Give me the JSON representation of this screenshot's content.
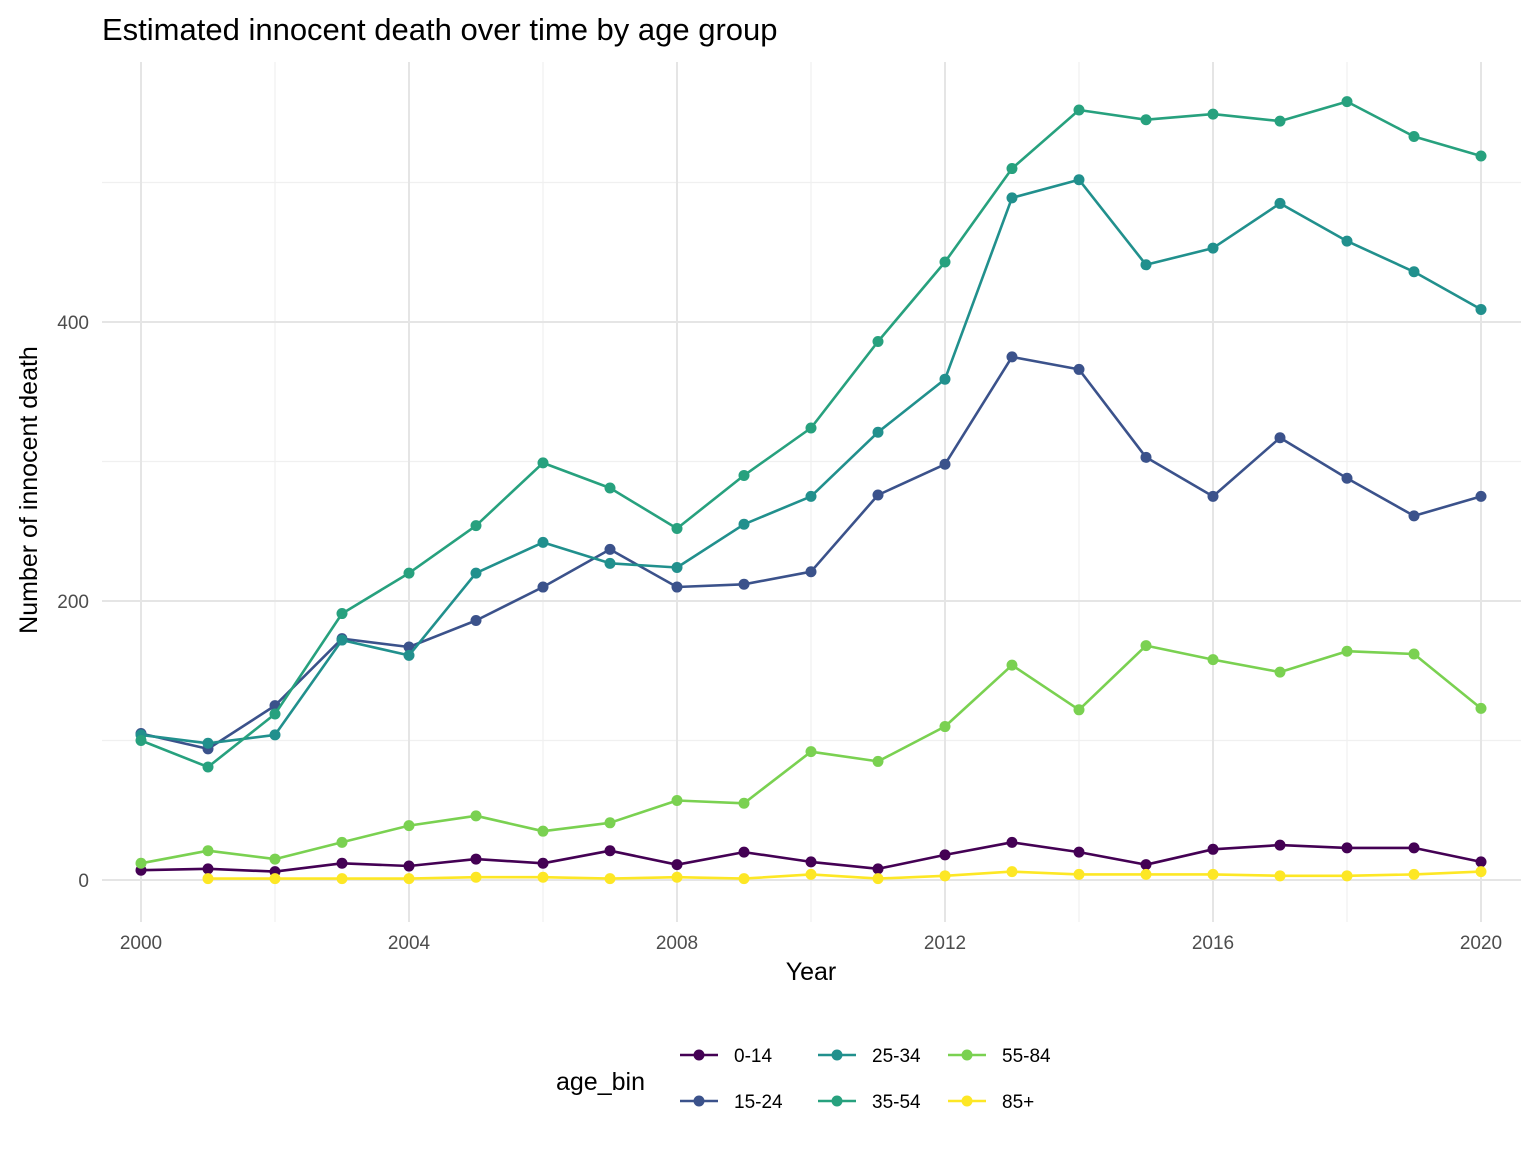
{
  "chart_data": {
    "type": "line",
    "title": "Estimated innocent death over time by age group",
    "xlabel": "Year",
    "ylabel": "Number of innocent death",
    "xlim": [
      2000,
      2020
    ],
    "ylim": [
      0,
      560
    ],
    "x_ticks": [
      2000,
      2004,
      2008,
      2012,
      2016,
      2020
    ],
    "y_ticks": [
      0,
      200,
      400
    ],
    "grid": true,
    "legend": {
      "title": "age_bin",
      "position": "bottom"
    },
    "markers": true,
    "series": [
      {
        "name": "0-14",
        "color": "#440154",
        "x": [
          2000,
          2001,
          2002,
          2003,
          2004,
          2005,
          2006,
          2007,
          2008,
          2009,
          2010,
          2011,
          2012,
          2013,
          2014,
          2015,
          2016,
          2017,
          2018,
          2019,
          2020
        ],
        "y": [
          7,
          8,
          6,
          12,
          10,
          15,
          12,
          21,
          11,
          20,
          13,
          8,
          18,
          27,
          20,
          11,
          22,
          25,
          23,
          23,
          13
        ]
      },
      {
        "name": "15-24",
        "color": "#3b528b",
        "x": [
          2000,
          2001,
          2002,
          2003,
          2004,
          2005,
          2006,
          2007,
          2008,
          2009,
          2010,
          2011,
          2012,
          2013,
          2014,
          2015,
          2016,
          2017,
          2018,
          2019,
          2020
        ],
        "y": [
          105,
          94,
          125,
          173,
          167,
          186,
          210,
          237,
          210,
          212,
          221,
          276,
          298,
          375,
          366,
          303,
          275,
          317,
          288,
          261,
          275
        ]
      },
      {
        "name": "25-34",
        "color": "#21908d",
        "x": [
          2000,
          2001,
          2002,
          2003,
          2004,
          2005,
          2006,
          2007,
          2008,
          2009,
          2010,
          2011,
          2012,
          2013,
          2014,
          2015,
          2016,
          2017,
          2018,
          2019,
          2020
        ],
        "y": [
          104,
          98,
          104,
          172,
          161,
          220,
          242,
          227,
          224,
          255,
          275,
          321,
          359,
          489,
          502,
          441,
          453,
          485,
          458,
          436,
          409
        ]
      },
      {
        "name": "35-54",
        "color": "#27a17e",
        "x": [
          2000,
          2001,
          2002,
          2003,
          2004,
          2005,
          2006,
          2007,
          2008,
          2009,
          2010,
          2011,
          2012,
          2013,
          2014,
          2015,
          2016,
          2017,
          2018,
          2019,
          2020
        ],
        "y": [
          100,
          81,
          119,
          191,
          220,
          254,
          299,
          281,
          252,
          290,
          324,
          386,
          443,
          510,
          552,
          545,
          549,
          544,
          558,
          533,
          519
        ]
      },
      {
        "name": "55-84",
        "color": "#7ad151",
        "x": [
          2000,
          2001,
          2002,
          2003,
          2004,
          2005,
          2006,
          2007,
          2008,
          2009,
          2010,
          2011,
          2012,
          2013,
          2014,
          2015,
          2016,
          2017,
          2018,
          2019,
          2020
        ],
        "y": [
          12,
          21,
          15,
          27,
          39,
          46,
          35,
          41,
          57,
          55,
          92,
          85,
          110,
          154,
          122,
          168,
          158,
          149,
          164,
          162,
          123
        ]
      },
      {
        "name": "85+",
        "color": "#fde725",
        "x": [
          2001,
          2002,
          2003,
          2004,
          2005,
          2006,
          2007,
          2008,
          2009,
          2010,
          2011,
          2012,
          2013,
          2014,
          2015,
          2016,
          2017,
          2018,
          2019,
          2020
        ],
        "y": [
          1,
          1,
          1,
          1,
          2,
          2,
          1,
          2,
          1,
          4,
          1,
          3,
          6,
          4,
          4,
          4,
          3,
          3,
          4,
          6
        ]
      }
    ]
  }
}
